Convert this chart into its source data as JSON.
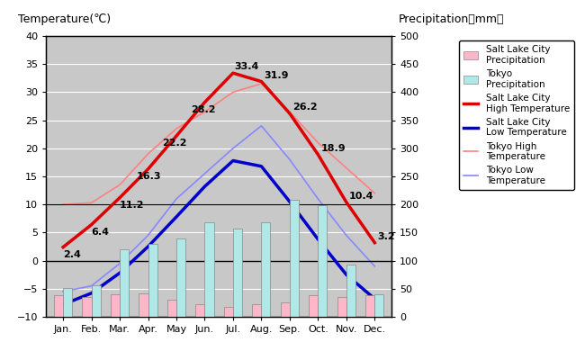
{
  "months": [
    "Jan.",
    "Feb.",
    "Mar.",
    "Apr.",
    "May",
    "Jun.",
    "Jul.",
    "Aug.",
    "Sep.",
    "Oct.",
    "Nov.",
    "Dec."
  ],
  "slc_high": [
    2.4,
    6.4,
    11.2,
    16.3,
    22.2,
    28.2,
    33.4,
    31.9,
    26.2,
    18.9,
    10.4,
    3.2
  ],
  "slc_low": [
    -7.8,
    -5.8,
    -2.2,
    2.5,
    7.8,
    13.2,
    17.8,
    16.8,
    10.5,
    3.8,
    -2.5,
    -6.8
  ],
  "tokyo_high": [
    10.0,
    10.3,
    13.5,
    19.0,
    23.5,
    26.5,
    30.0,
    31.5,
    26.5,
    21.0,
    16.5,
    12.0
  ],
  "tokyo_low": [
    -5.5,
    -4.5,
    -0.5,
    4.5,
    11.0,
    15.5,
    20.0,
    24.0,
    18.0,
    11.0,
    4.5,
    -1.0
  ],
  "slc_precip_mm": [
    38.0,
    36.0,
    40.0,
    42.0,
    30.0,
    23.0,
    17.0,
    22.0,
    26.0,
    38.0,
    35.0,
    38.0
  ],
  "tokyo_precip_mm": [
    52.0,
    56.0,
    120.0,
    130.0,
    140.0,
    168.0,
    157.0,
    168.0,
    208.0,
    198.0,
    93.0,
    40.0
  ],
  "slc_high_labels": [
    "2.4",
    "6.4",
    "11.2",
    "16.3",
    "22.2",
    "28.2",
    "33.4",
    "31.9",
    "26.2",
    "18.9",
    "10.4",
    "3.2"
  ],
  "temp_ylim": [
    -10,
    40
  ],
  "precip_ylim": [
    0,
    500
  ],
  "temp_yticks": [
    -10,
    -5,
    0,
    5,
    10,
    15,
    20,
    25,
    30,
    35,
    40
  ],
  "precip_yticks": [
    0,
    50,
    100,
    150,
    200,
    250,
    300,
    350,
    400,
    450,
    500
  ],
  "slc_high_color": "#dd0000",
  "slc_low_color": "#0000cc",
  "tokyo_high_color": "#ff8080",
  "tokyo_low_color": "#8888ff",
  "slc_precip_color": "#ffb6c8",
  "tokyo_precip_color": "#b0e8e8",
  "bg_color": "#c8c8c8",
  "grid_color": "#ffffff",
  "title_left": "Temperature(℃)",
  "title_right": "Precipitation（mm）",
  "legend_slc_precip": "Salt Lake City\nPrecipitation",
  "legend_tokyo_precip": "Tokyo\nPrecipitation",
  "legend_slc_high": "Salt Lake City\nHigh Temperature",
  "legend_slc_low": "Salt Lake City\nLow Temperature",
  "legend_tokyo_high": "Tokyo High\nTemperature",
  "legend_tokyo_low": "Tokyo Low\nTemperature"
}
